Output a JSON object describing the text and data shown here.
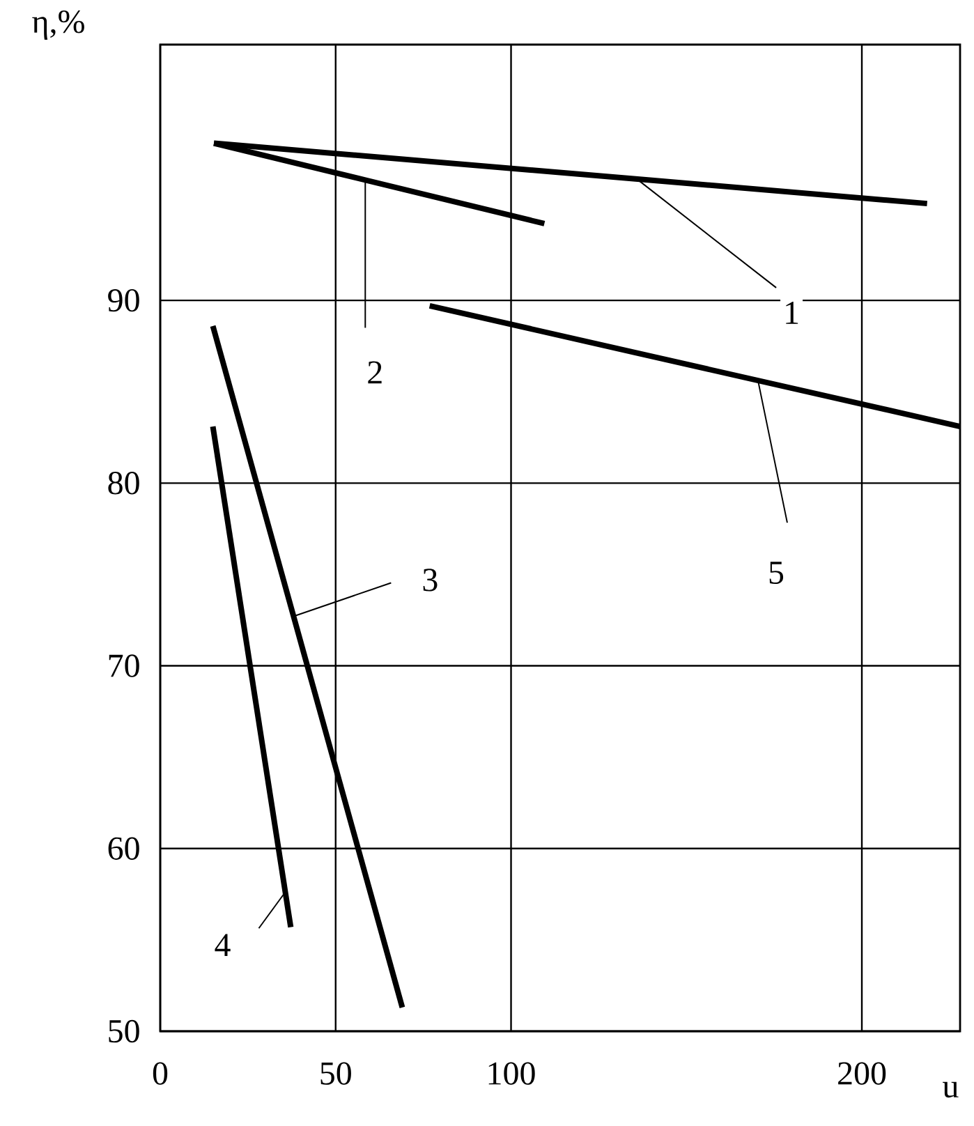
{
  "chart_data": {
    "type": "line",
    "xlabel": "u",
    "ylabel": "η,%",
    "xlim": [
      0,
      228
    ],
    "xticks": [
      0,
      50,
      100,
      200
    ],
    "ylim": [
      50,
      104
    ],
    "yticks": [
      50,
      60,
      70,
      80,
      90
    ],
    "grid": true,
    "series": [
      {
        "name": "1",
        "color": "#000000",
        "x": [
          15.3,
          218.6
        ],
        "values": [
          98.6,
          95.3
        ]
      },
      {
        "name": "2",
        "color": "#000000",
        "x": [
          15.3,
          109.5
        ],
        "values": [
          98.6,
          94.2
        ]
      },
      {
        "name": "3",
        "color": "#000000",
        "x": [
          15.0,
          69.0
        ],
        "values": [
          88.6,
          51.3
        ]
      },
      {
        "name": "4",
        "color": "#000000",
        "x": [
          15.0,
          37.2
        ],
        "values": [
          83.1,
          55.7
        ]
      },
      {
        "name": "5",
        "color": "#000000",
        "x": [
          76.8,
          228
        ],
        "values": [
          89.7,
          83.1
        ]
      }
    ]
  }
}
